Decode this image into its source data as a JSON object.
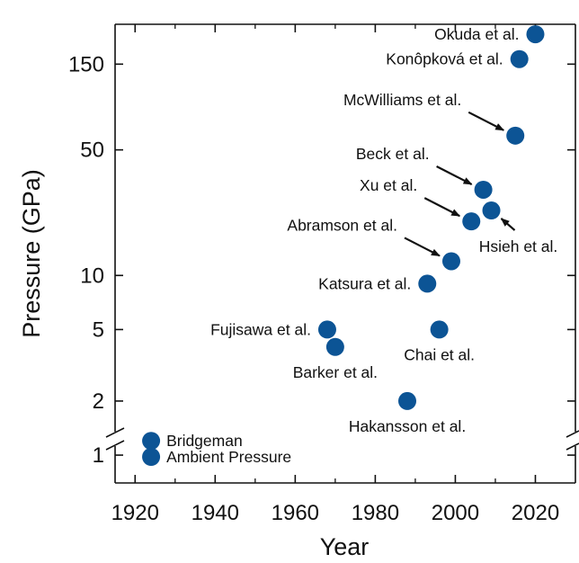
{
  "chart_data": {
    "type": "scatter",
    "title": "",
    "xlabel": "Year",
    "ylabel": "Pressure (GPa)",
    "xlim": [
      1915,
      2030
    ],
    "ylim": [
      0.7,
      250
    ],
    "y_scale": "log",
    "y_axis_break": true,
    "colors": {
      "marker": "#0c5495"
    },
    "x_ticks": [
      1920,
      1940,
      1960,
      1980,
      2000,
      2020
    ],
    "y_ticks": [
      {
        "value": 1,
        "label": "1"
      },
      {
        "value": 2,
        "label": "2"
      },
      {
        "value": 5,
        "label": "5"
      },
      {
        "value": 10,
        "label": "10"
      },
      {
        "value": 50,
        "label": "50"
      },
      {
        "value": 150,
        "label": "150"
      }
    ],
    "points": [
      {
        "label": "Ambient Pressure",
        "x": 1924,
        "y": "ambient",
        "side": "right"
      },
      {
        "label": "Bridgeman",
        "x": 1924,
        "y": 1.2,
        "side": "right"
      },
      {
        "label": "Fujisawa et al.",
        "x": 1968,
        "y": 5,
        "side": "left"
      },
      {
        "label": "Barker et al.",
        "x": 1970,
        "y": 4,
        "side": "below"
      },
      {
        "label": "Hakansson et al.",
        "x": 1988,
        "y": 2,
        "side": "below"
      },
      {
        "label": "Katsura et al.",
        "x": 1993,
        "y": 9,
        "side": "left"
      },
      {
        "label": "Chai et al.",
        "x": 1996,
        "y": 5,
        "side": "below"
      },
      {
        "label": "Abramson et al.",
        "x": 1999,
        "y": 12,
        "side": "arrow-left"
      },
      {
        "label": "Xu et al.",
        "x": 2004,
        "y": 20,
        "side": "arrow-left"
      },
      {
        "label": "Beck et al.",
        "x": 2007,
        "y": 30,
        "side": "arrow-left"
      },
      {
        "label": "Hsieh  et al.",
        "x": 2009,
        "y": 23,
        "side": "arrow-right"
      },
      {
        "label": "McWilliams et al.",
        "x": 2015,
        "y": 60,
        "side": "arrow-left"
      },
      {
        "label": "Konôpková et al.",
        "x": 2016,
        "y": 160,
        "side": "left"
      },
      {
        "label": "Okuda et al.",
        "x": 2020,
        "y": 220,
        "side": "left"
      }
    ]
  }
}
